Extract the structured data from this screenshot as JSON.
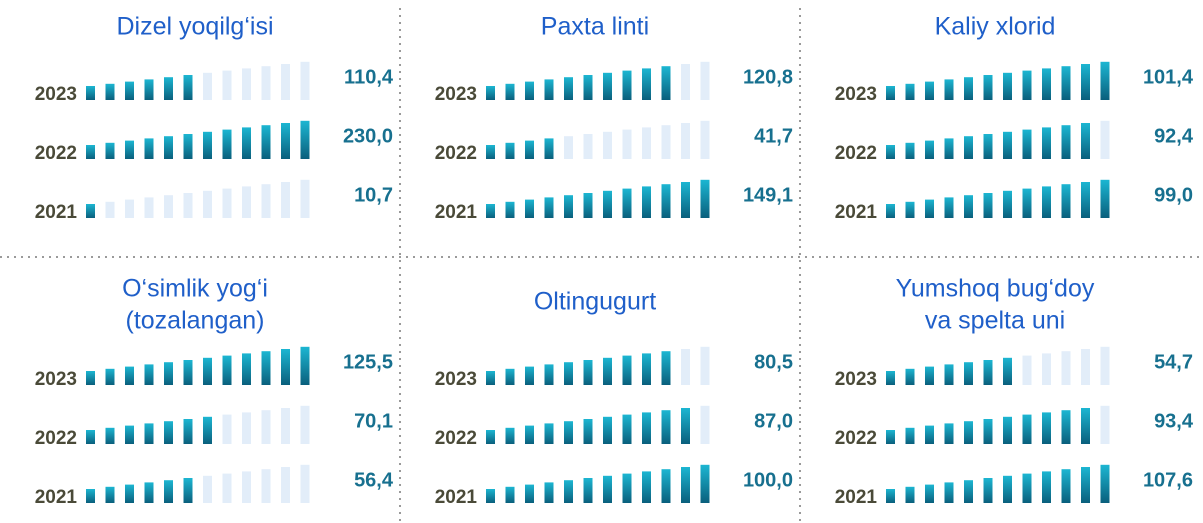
{
  "chart_data": [
    {
      "type": "pictogram",
      "title": [
        "Dizel yoqilg‘isi"
      ],
      "categories": [
        "2023",
        "2022",
        "2021"
      ],
      "values": [
        110.4,
        230.0,
        10.7
      ],
      "value_labels": [
        "110,4",
        "230,0",
        "10,7"
      ]
    },
    {
      "type": "pictogram",
      "title": [
        "Paxta linti"
      ],
      "categories": [
        "2023",
        "2022",
        "2021"
      ],
      "values": [
        120.8,
        41.7,
        149.1
      ],
      "value_labels": [
        "120,8",
        "41,7",
        "149,1"
      ]
    },
    {
      "type": "pictogram",
      "title": [
        "Kaliy xlorid"
      ],
      "categories": [
        "2023",
        "2022",
        "2021"
      ],
      "values": [
        101.4,
        92.4,
        99.0
      ],
      "value_labels": [
        "101,4",
        "92,4",
        "99,0"
      ]
    },
    {
      "type": "pictogram",
      "title": [
        "O‘simlik yog‘i",
        "(tozalangan)"
      ],
      "categories": [
        "2023",
        "2022",
        "2021"
      ],
      "values": [
        125.5,
        70.1,
        56.4
      ],
      "value_labels": [
        "125,5",
        "70,1",
        "56,4"
      ]
    },
    {
      "type": "pictogram",
      "title": [
        "Oltingugurt"
      ],
      "categories": [
        "2023",
        "2022",
        "2021"
      ],
      "values": [
        80.5,
        87.0,
        100.0
      ],
      "value_labels": [
        "80,5",
        "87,0",
        "100,0"
      ]
    },
    {
      "type": "pictogram",
      "title": [
        "Yumshoq bug‘doy",
        "va spelta uni"
      ],
      "categories": [
        "2023",
        "2022",
        "2021"
      ],
      "values": [
        54.7,
        93.4,
        107.6
      ],
      "value_labels": [
        "54,7",
        "93,4",
        "107,6"
      ]
    }
  ]
}
